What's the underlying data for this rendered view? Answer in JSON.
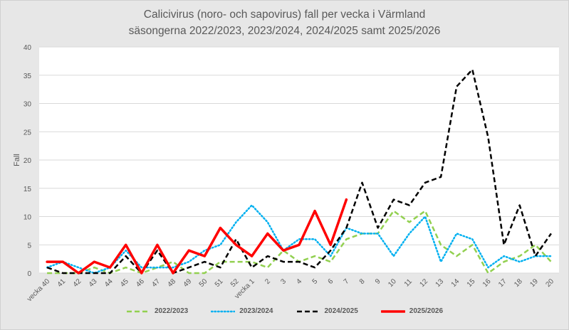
{
  "title": {
    "line1": "Calicivirus (noro- och sapovirus) fall per vecka i Värmland",
    "line2": "säsongerna 2022/2023, 2023/2024, 2024/2025 samt 2025/2026"
  },
  "axes": {
    "ylabel": "Fall",
    "yticks": [
      "0",
      "5",
      "10",
      "15",
      "20",
      "25",
      "30",
      "35",
      "40"
    ]
  },
  "chart_data": {
    "type": "line",
    "title": "Calicivirus (noro- och sapovirus) fall per vecka i Värmland säsongerna 2022/2023, 2023/2024, 2024/2025 samt 2025/2026",
    "xlabel": "",
    "ylabel": "Fall",
    "ylim": [
      0,
      40
    ],
    "grid": true,
    "legend_position": "bottom",
    "categories": [
      "vecka 40",
      "41",
      "42",
      "43",
      "44",
      "45",
      "46",
      "47",
      "48",
      "49",
      "50",
      "51",
      "52",
      "vecka 1",
      "2",
      "3",
      "4",
      "5",
      "6",
      "7",
      "8",
      "9",
      "10",
      "11",
      "12",
      "13",
      "14",
      "15",
      "16",
      "17",
      "18",
      "19",
      "20"
    ],
    "series": [
      {
        "name": "2022/2023",
        "color": "#92d050",
        "style": "dashed",
        "values": [
          0,
          0,
          0,
          1,
          0,
          1,
          0,
          1,
          2,
          0,
          0,
          2,
          2,
          2,
          1,
          4,
          2,
          3,
          2,
          6,
          7,
          7,
          11,
          9,
          11,
          5,
          3,
          5,
          0,
          2,
          3,
          5,
          2
        ]
      },
      {
        "name": "2023/2024",
        "color": "#00b0f0",
        "style": "dotted",
        "values": [
          1,
          2,
          1,
          0,
          1,
          4,
          1,
          1,
          1,
          2,
          4,
          5,
          9,
          12,
          9,
          4,
          6,
          6,
          3,
          8,
          7,
          7,
          3,
          7,
          10,
          2,
          7,
          6,
          1,
          3,
          2,
          3,
          3
        ]
      },
      {
        "name": "2024/2025",
        "color": "#000000",
        "style": "dashed",
        "values": [
          1,
          0,
          0,
          0,
          0,
          3,
          0,
          4,
          0,
          1,
          2,
          1,
          6,
          1,
          3,
          2,
          2,
          1,
          4,
          8,
          16,
          8,
          13,
          12,
          16,
          17,
          33,
          36,
          24,
          5,
          12,
          3,
          7
        ]
      },
      {
        "name": "2025/2026",
        "color": "#ff0000",
        "style": "solid",
        "values": [
          2,
          2,
          0,
          2,
          1,
          5,
          0,
          5,
          0,
          4,
          3,
          8,
          5,
          3,
          7,
          4,
          5,
          11,
          5,
          13
        ]
      }
    ]
  }
}
